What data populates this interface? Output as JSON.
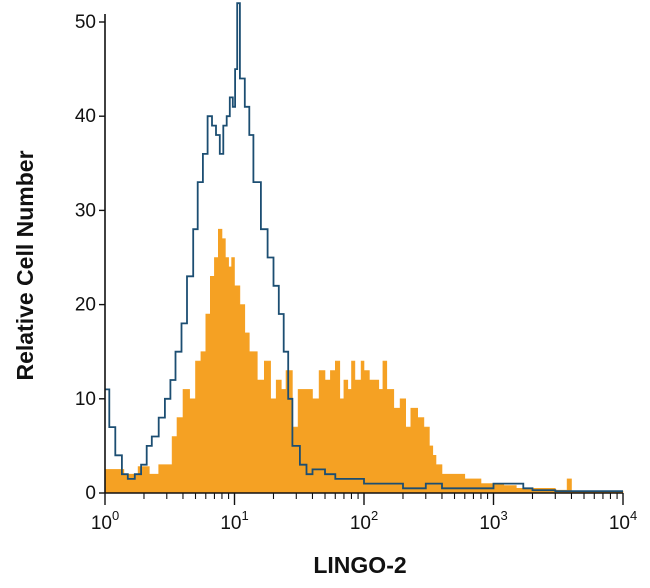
{
  "chart_data": {
    "type": "area",
    "xlabel": "LINGO-2",
    "ylabel": "Relative Cell Number",
    "x_scale": "log10",
    "xlim": [
      1,
      10000
    ],
    "ylim": [
      0,
      50
    ],
    "grid": false,
    "legend": "none",
    "x_ticks": [
      {
        "value": 1,
        "base": "10",
        "exp": "0"
      },
      {
        "value": 10,
        "base": "10",
        "exp": "1"
      },
      {
        "value": 100,
        "base": "10",
        "exp": "2"
      },
      {
        "value": 1000,
        "base": "10",
        "exp": "3"
      },
      {
        "value": 10000,
        "base": "10",
        "exp": "4"
      }
    ],
    "y_ticks": [
      "0",
      "10",
      "20",
      "30",
      "40",
      "50"
    ],
    "series": [
      {
        "style": "filled",
        "color": "#f5a123",
        "x": [
          1,
          1.4,
          1.8,
          2.2,
          2.6,
          3.0,
          3.3,
          3.6,
          4.0,
          4.5,
          5.0,
          5.5,
          6.0,
          6.5,
          7.0,
          7.5,
          8.0,
          8.5,
          9.0,
          9.5,
          10,
          11,
          12,
          13,
          15,
          17,
          19,
          21,
          23,
          25,
          28,
          31,
          35,
          40,
          45,
          50,
          55,
          60,
          65,
          70,
          75,
          80,
          85,
          90,
          95,
          100,
          110,
          120,
          130,
          140,
          150,
          170,
          190,
          210,
          230,
          260,
          290,
          320,
          340,
          360,
          400,
          450,
          500,
          600,
          700,
          800,
          1000,
          1200,
          1500,
          2000,
          2500,
          3000,
          3500,
          3700,
          4000,
          5000,
          7000,
          10000
        ],
        "values": [
          2.5,
          2,
          2.8,
          2,
          3,
          3,
          6,
          8,
          11,
          10,
          14,
          15,
          19,
          23,
          25,
          28,
          27,
          25,
          24,
          25,
          22,
          20,
          17,
          15,
          12,
          14,
          10,
          12,
          11,
          13,
          7,
          11,
          11,
          10,
          13,
          12,
          13,
          14,
          10,
          12,
          11,
          14,
          12,
          12,
          14,
          13,
          12,
          12,
          11,
          14,
          11,
          9,
          10,
          7,
          9,
          8,
          7,
          5,
          4,
          3,
          2,
          2,
          2,
          1.5,
          1.5,
          1,
          1,
          0.8,
          0.5,
          0.5,
          0.5,
          0.3,
          0.3,
          1.5,
          0.2,
          0.2,
          0.2,
          0.2
        ]
      },
      {
        "style": "outline",
        "color": "#1c4e72",
        "x": [
          1,
          1.08,
          1.2,
          1.35,
          1.5,
          1.7,
          1.9,
          2.1,
          2.3,
          2.6,
          2.9,
          3.2,
          3.5,
          3.9,
          4.3,
          4.8,
          5.2,
          5.7,
          6.2,
          6.7,
          7.2,
          7.7,
          8.2,
          8.7,
          9.2,
          9.7,
          10.1,
          10.5,
          11,
          12,
          13,
          14,
          16,
          18,
          20,
          22,
          24,
          26,
          28,
          32,
          36,
          40,
          50,
          60,
          80,
          100,
          150,
          200,
          300,
          400,
          600,
          800,
          1000,
          1300,
          1700,
          2000,
          3000,
          5000,
          10000
        ],
        "values": [
          11,
          7,
          4,
          2,
          1.5,
          2,
          3,
          5,
          6,
          8,
          10,
          12,
          15,
          18,
          23,
          28,
          33,
          36,
          40,
          39,
          38,
          36,
          39,
          40,
          42,
          41,
          45,
          52,
          44,
          41,
          38,
          33,
          28,
          25,
          22,
          19,
          15,
          10,
          5,
          3,
          2,
          2.5,
          2,
          1.5,
          1.5,
          1,
          1,
          0.5,
          1,
          0.5,
          0.5,
          0.5,
          1,
          1,
          0.5,
          0.3,
          0.2,
          0.2,
          0.2
        ]
      }
    ]
  }
}
